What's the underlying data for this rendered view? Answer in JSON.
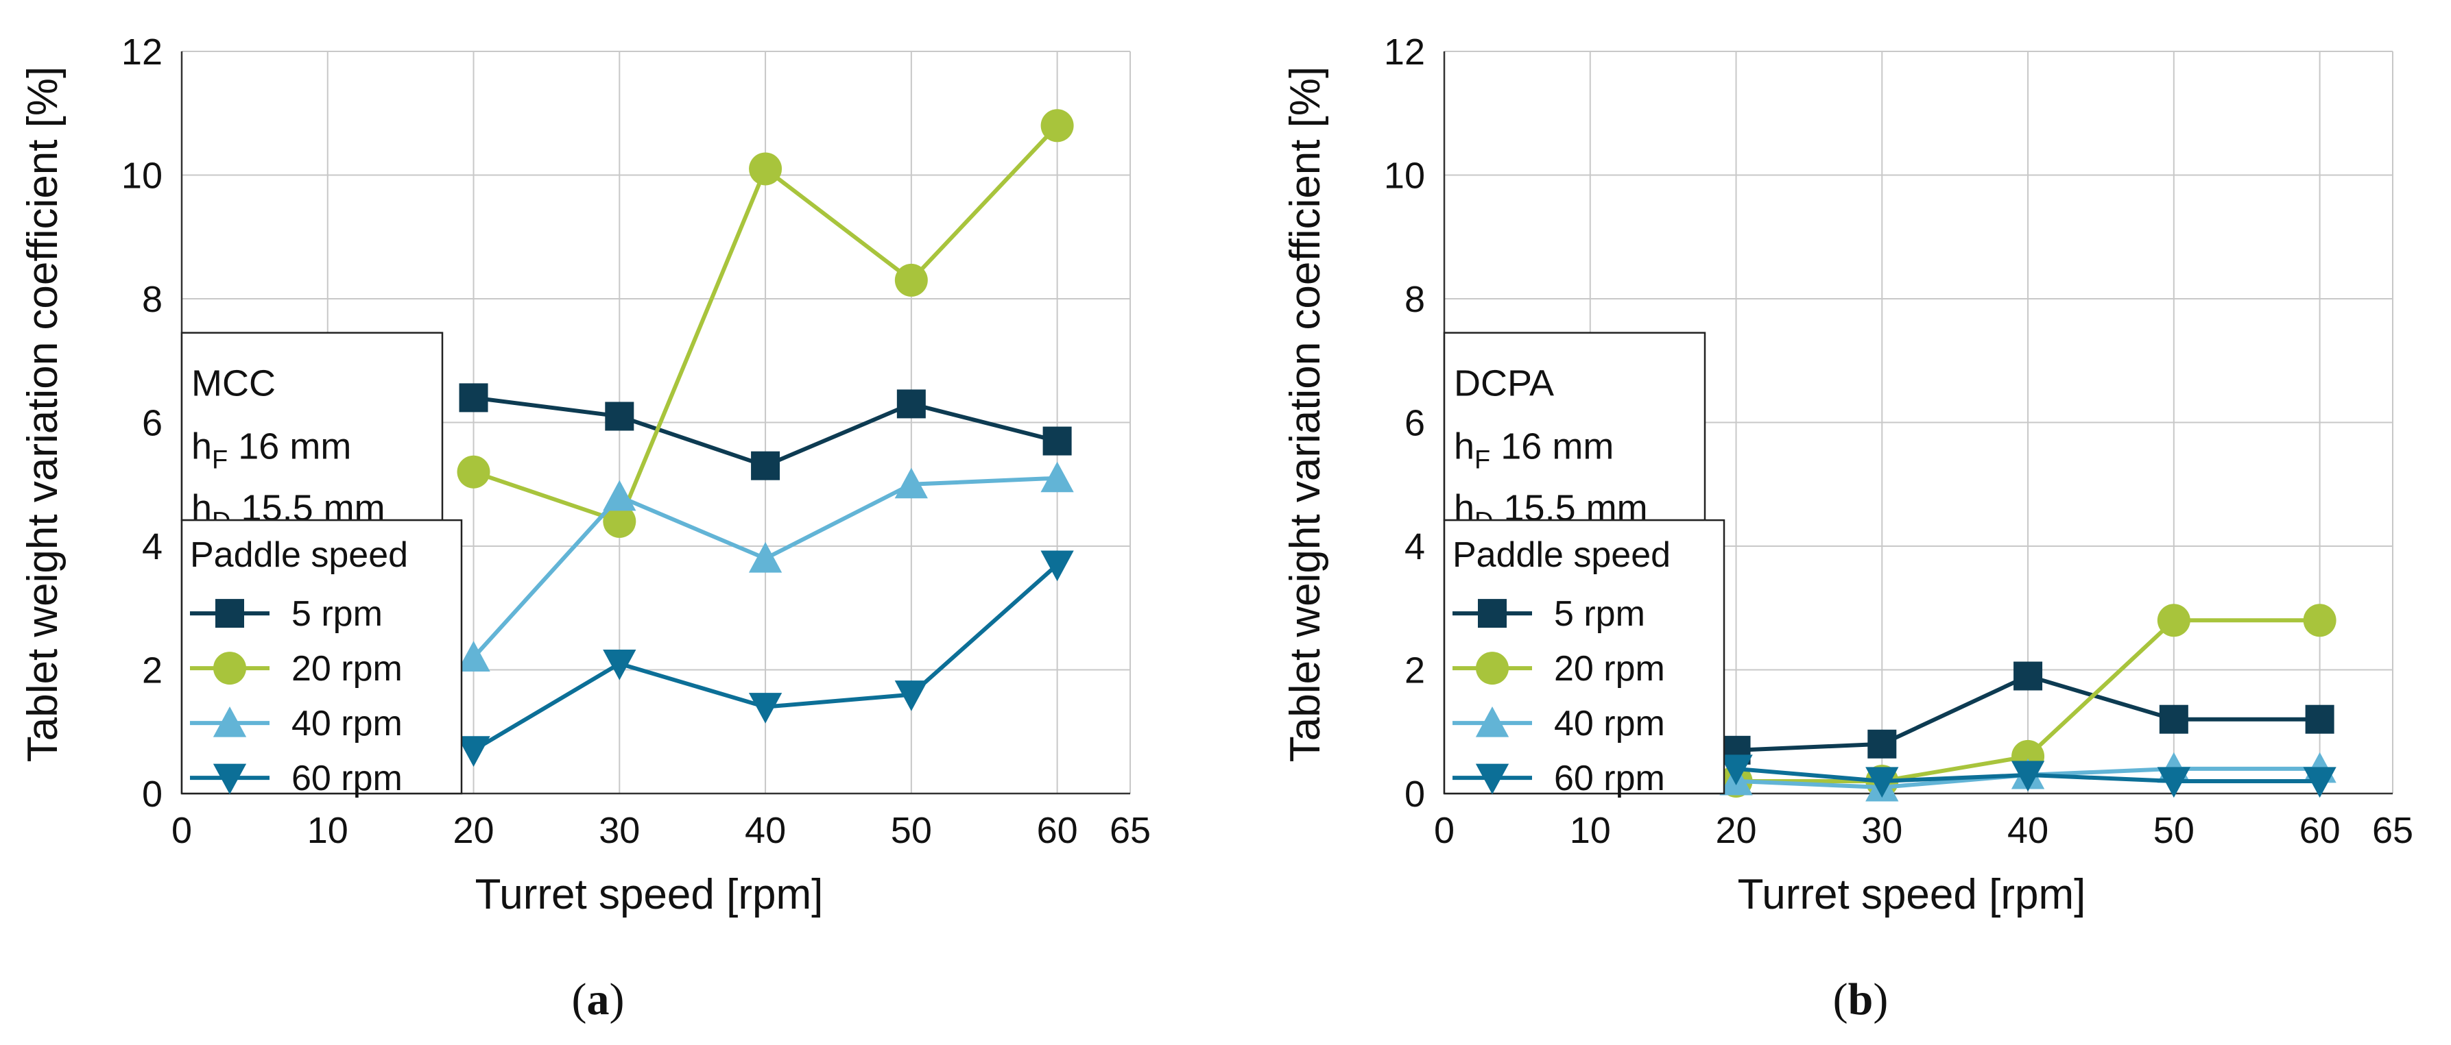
{
  "colors": {
    "s5": "#0d3b52",
    "s20": "#a8c43c",
    "s40": "#62b4d6",
    "s60": "#0c6f97"
  },
  "chart_data": [
    {
      "type": "line",
      "panel": "a",
      "caption": "(a)",
      "caption_letter": "a",
      "xlabel": "Turret speed [rpm]",
      "ylabel": "Tablet weight variation coefficient [%]",
      "xlim": [
        0,
        65
      ],
      "ylim": [
        0,
        12
      ],
      "xticks": [
        0,
        10,
        20,
        30,
        40,
        50,
        60,
        65
      ],
      "yticks": [
        0,
        2,
        4,
        6,
        8,
        10,
        12
      ],
      "grid": true,
      "material": "MCC",
      "params": [
        {
          "sym": "h",
          "sub": "F",
          "val": " 16 mm"
        },
        {
          "sym": "h",
          "sub": "D",
          "val": " 15.5 mm"
        }
      ],
      "legend_title": "Paddle speed",
      "x": [
        20,
        30,
        40,
        50,
        60
      ],
      "series": [
        {
          "name": "5 rpm",
          "marker": "square",
          "color": "#0d3b52",
          "values": [
            6.4,
            6.1,
            5.3,
            6.3,
            5.7
          ]
        },
        {
          "name": "20 rpm",
          "marker": "circle",
          "color": "#a8c43c",
          "values": [
            5.2,
            4.4,
            10.1,
            8.3,
            10.8
          ]
        },
        {
          "name": "40 rpm",
          "marker": "triangle-up",
          "color": "#62b4d6",
          "values": [
            2.2,
            4.8,
            3.8,
            5.0,
            5.1
          ]
        },
        {
          "name": "60 rpm",
          "marker": "triangle-down",
          "color": "#0c6f97",
          "values": [
            0.7,
            2.1,
            1.4,
            1.6,
            3.7
          ]
        }
      ]
    },
    {
      "type": "line",
      "panel": "b",
      "caption": "(b)",
      "caption_letter": "b",
      "xlabel": "Turret speed [rpm]",
      "ylabel": "Tablet weight variation coefficient [%]",
      "xlim": [
        0,
        65
      ],
      "ylim": [
        0,
        12
      ],
      "xticks": [
        0,
        10,
        20,
        30,
        40,
        50,
        60,
        65
      ],
      "yticks": [
        0,
        2,
        4,
        6,
        8,
        10,
        12
      ],
      "grid": true,
      "material": "DCPA",
      "params": [
        {
          "sym": "h",
          "sub": "F",
          "val": " 16 mm"
        },
        {
          "sym": "h",
          "sub": "D",
          "val": " 15.5 mm"
        }
      ],
      "legend_title": "Paddle speed",
      "x": [
        20,
        30,
        40,
        50,
        60
      ],
      "series": [
        {
          "name": "5 rpm",
          "marker": "square",
          "color": "#0d3b52",
          "values": [
            0.7,
            0.8,
            1.9,
            1.2,
            1.2
          ]
        },
        {
          "name": "20 rpm",
          "marker": "circle",
          "color": "#a8c43c",
          "values": [
            0.2,
            0.2,
            0.6,
            2.8,
            2.8
          ]
        },
        {
          "name": "40 rpm",
          "marker": "triangle-up",
          "color": "#62b4d6",
          "values": [
            0.2,
            0.1,
            0.3,
            0.4,
            0.4
          ]
        },
        {
          "name": "60 rpm",
          "marker": "triangle-down",
          "color": "#0c6f97",
          "values": [
            0.4,
            0.2,
            0.3,
            0.2,
            0.2
          ]
        }
      ]
    }
  ]
}
